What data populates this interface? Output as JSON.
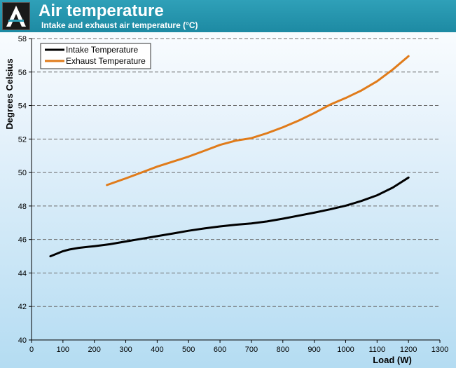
{
  "header": {
    "title": "Air temperature",
    "subtitle": "Intake and exhaust air temperature (°C)",
    "logo": "site-logo-icon"
  },
  "colors": {
    "header_bg": "#1d8aa3",
    "intake": "#000000",
    "exhaust": "#e07b1a",
    "grid": "#6b6b6b"
  },
  "chart_data": {
    "type": "line",
    "xlabel": "Load (W)",
    "ylabel": "Degrees Celsius",
    "xlim": [
      0,
      1300
    ],
    "ylim": [
      40,
      58
    ],
    "xticks": [
      0,
      100,
      200,
      300,
      400,
      500,
      600,
      700,
      800,
      900,
      1000,
      1100,
      1200,
      1300
    ],
    "yticks": [
      40,
      42,
      44,
      46,
      48,
      50,
      52,
      54,
      56,
      58
    ],
    "grid": "horizontal dashed",
    "legend": "top-left",
    "series": [
      {
        "name": "Intake Temperature",
        "color": "#000000",
        "x": [
          60,
          80,
          100,
          120,
          150,
          200,
          250,
          300,
          350,
          400,
          450,
          500,
          550,
          600,
          650,
          700,
          750,
          800,
          850,
          900,
          950,
          1000,
          1050,
          1100,
          1150,
          1200
        ],
        "y": [
          45.0,
          45.15,
          45.3,
          45.4,
          45.5,
          45.6,
          45.72,
          45.88,
          46.04,
          46.2,
          46.36,
          46.52,
          46.66,
          46.78,
          46.88,
          46.96,
          47.08,
          47.24,
          47.42,
          47.6,
          47.8,
          48.02,
          48.3,
          48.64,
          49.1,
          49.7
        ]
      },
      {
        "name": "Exhaust Temperature",
        "color": "#e07b1a",
        "x": [
          240,
          300,
          350,
          400,
          450,
          500,
          550,
          600,
          650,
          700,
          750,
          800,
          850,
          900,
          950,
          1000,
          1050,
          1100,
          1150,
          1200
        ],
        "y": [
          49.25,
          49.65,
          50.0,
          50.35,
          50.65,
          50.95,
          51.3,
          51.65,
          51.9,
          52.05,
          52.35,
          52.7,
          53.1,
          53.55,
          54.05,
          54.45,
          54.9,
          55.45,
          56.15,
          56.95
        ]
      }
    ]
  }
}
